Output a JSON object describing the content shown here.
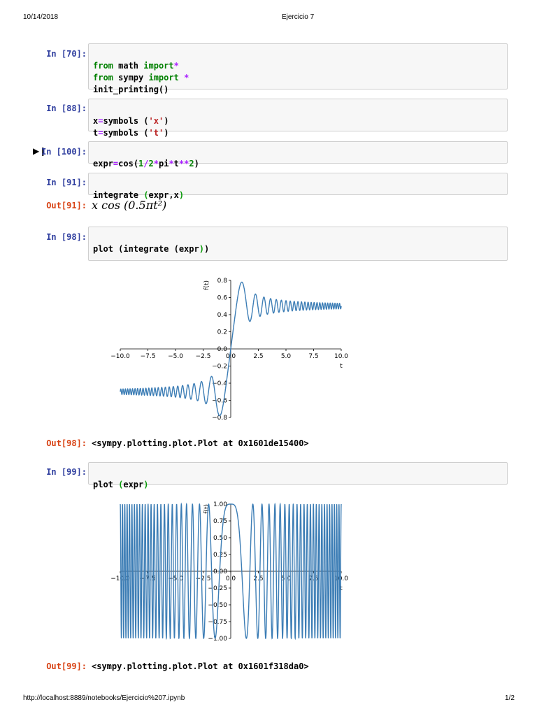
{
  "header": {
    "date": "10/14/2018",
    "title": "Ejercicio 7"
  },
  "footer": {
    "url": "http://localhost:8889/notebooks/Ejercicio%207.ipynb",
    "page": "1/2"
  },
  "cells": {
    "c70": {
      "prompt": "In [70]:",
      "lines": [
        "from math import*",
        "from sympy import *",
        "init_printing()"
      ]
    },
    "c88": {
      "prompt": "In [88]:",
      "lines": [
        "x=symbols ('x')",
        "t=symbols ('t')"
      ]
    },
    "c100": {
      "prompt": "In [100]:",
      "lines": [
        "expr=cos(1/2*pi*t**2)"
      ]
    },
    "c91": {
      "prompt": "In [91]:",
      "lines": [
        "integrate (expr,x)"
      ],
      "out_prompt": "Out[91]:",
      "output": "x cos (0.5πt²)"
    },
    "c98": {
      "prompt": "In [98]:",
      "lines": [
        "plot (integrate (expr))"
      ],
      "out_prompt": "Out[98]:",
      "output": "<sympy.plotting.plot.Plot at 0x1601de15400>"
    },
    "c99": {
      "prompt": "In [99]:",
      "lines": [
        "plot (expr)"
      ],
      "out_prompt": "Out[99]:",
      "output": "<sympy.plotting.plot.Plot at 0x1601f318da0>"
    }
  },
  "chart_data": [
    {
      "type": "line",
      "title": "",
      "xlabel": "t",
      "ylabel": "f(t)",
      "xlim": [
        -10,
        10
      ],
      "ylim": [
        -0.8,
        0.8
      ],
      "xticks": [
        "-10.0",
        "-7.5",
        "-5.0",
        "-2.5",
        "0.0",
        "2.5",
        "5.0",
        "7.5",
        "10.0"
      ],
      "yticks": [
        "0.8",
        "0.6",
        "0.4",
        "0.2",
        "0.0",
        "-0.2",
        "-0.4",
        "-0.6",
        "-0.8"
      ],
      "series": [
        {
          "function": "Fresnel C integral of cos(π t²/2)",
          "color": "#3c7db5"
        }
      ],
      "grid": false
    },
    {
      "type": "line",
      "title": "",
      "xlabel": "t",
      "ylabel": "f(t)",
      "xlim": [
        -10,
        10
      ],
      "ylim": [
        -1,
        1
      ],
      "xticks": [
        "-10.0",
        "-7.5",
        "-5.0",
        "-2.5",
        "0.0",
        "2.5",
        "5.0",
        "7.5",
        "10.0"
      ],
      "yticks": [
        "1.00",
        "0.75",
        "0.50",
        "0.25",
        "0.00",
        "-0.25",
        "-0.50",
        "-0.75",
        "-1.00"
      ],
      "series": [
        {
          "function": "cos(0.5 π t²)",
          "color": "#3c7db5"
        }
      ],
      "grid": false
    }
  ]
}
